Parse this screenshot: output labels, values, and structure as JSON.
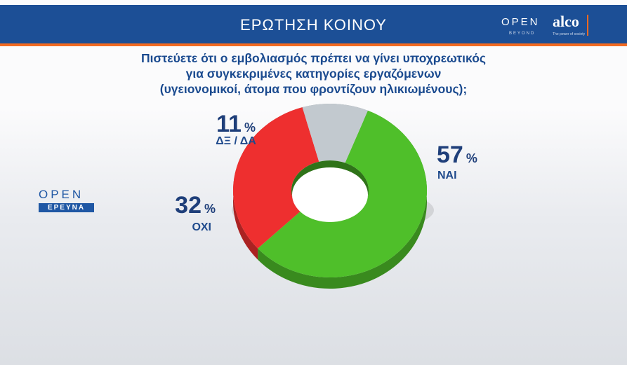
{
  "header": {
    "title": "ΕΡΩΤΗΣΗ ΚΟΙΝΟΥ"
  },
  "brand": {
    "open": "OPEN",
    "beyond": "BEYOND",
    "alco": "alco",
    "alco_sub": "The power of society"
  },
  "question": {
    "line1": "Πιστεύετε ότι ο εμβολιασμός πρέπει να γίνει υποχρεωτικός",
    "line2": "για συγκεκριμένες κατηγορίες εργαζόμενων",
    "line3": "(υγειονομικοί, άτομα που φροντίζουν ηλικιωμένους);"
  },
  "side_logo": {
    "open": "OPEN",
    "erevna": "ΕΡΕΥΝΑ"
  },
  "colors": {
    "header": "#1c4f96",
    "accent": "#f26a21",
    "yes": "#4fbf2a",
    "no": "#ee2f2f",
    "dk": "#c2c9cf",
    "label": "#1f3f7a"
  },
  "chart_data": {
    "type": "pie",
    "style": "3d-donut",
    "title": "",
    "unit": "%",
    "slices": [
      {
        "label": "ΝΑΙ",
        "value": 57,
        "color": "#4fbf2a"
      },
      {
        "label": "ΟΧΙ",
        "value": 32,
        "color": "#ee2f2f"
      },
      {
        "label": "ΔΞ / ΔΑ",
        "value": 11,
        "color": "#c2c9cf"
      }
    ]
  }
}
